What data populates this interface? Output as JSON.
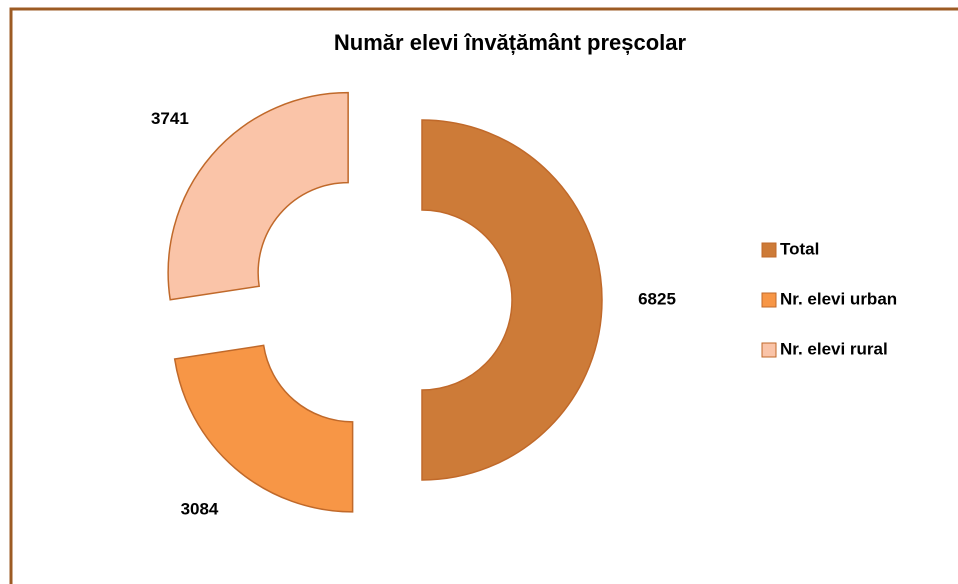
{
  "chart_data": {
    "type": "pie",
    "donut": true,
    "exploded": true,
    "title": "Număr elevi învățământ preșcolar",
    "categories": [
      "Total",
      "Nr. elevi urban",
      "Nr. elevi rural"
    ],
    "values": [
      6825,
      3084,
      3741
    ],
    "colors": [
      "#CD7B38",
      "#F79646",
      "#FAC4A8"
    ],
    "legend": "right"
  }
}
